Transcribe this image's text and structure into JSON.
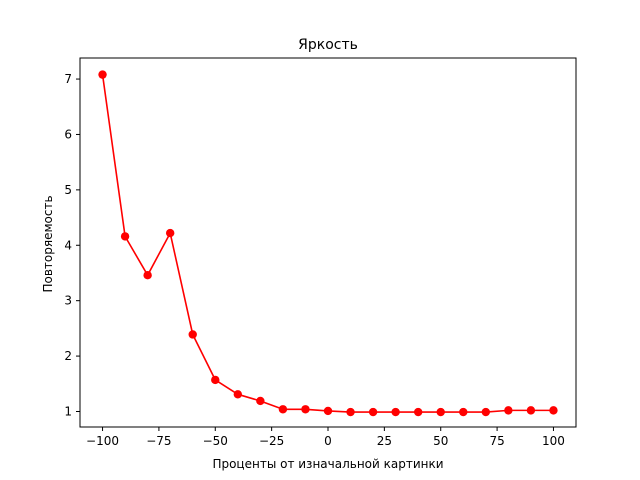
{
  "chart_data": {
    "type": "line",
    "title": "Яркость",
    "xlabel": "Проценты от изначальной картинки",
    "ylabel": "Повторяемость",
    "xlim": [
      -110,
      110
    ],
    "ylim": [
      0.72,
      7.38
    ],
    "xticks": [
      -100,
      -75,
      -50,
      -25,
      0,
      25,
      50,
      75,
      100
    ],
    "xtick_labels": [
      "−100",
      "−75",
      "−50",
      "−25",
      "0",
      "25",
      "50",
      "75",
      "100"
    ],
    "yticks": [
      1,
      2,
      3,
      4,
      5,
      6,
      7
    ],
    "ytick_labels": [
      "1",
      "2",
      "3",
      "4",
      "5",
      "6",
      "7"
    ],
    "grid": false,
    "legend": "none",
    "series": [
      {
        "color": "#ff0000",
        "marker": "circle",
        "x": [
          -100,
          -90,
          -80,
          -70,
          -60,
          -50,
          -40,
          -30,
          -20,
          -10,
          0,
          10,
          20,
          30,
          40,
          50,
          60,
          70,
          80,
          90,
          100
        ],
        "y": [
          7.08,
          4.16,
          3.46,
          4.22,
          2.39,
          1.57,
          1.31,
          1.19,
          1.04,
          1.04,
          1.01,
          0.99,
          0.99,
          0.99,
          0.99,
          0.99,
          0.99,
          0.99,
          1.02,
          1.02,
          1.02
        ]
      }
    ]
  }
}
